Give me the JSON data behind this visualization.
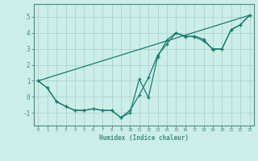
{
  "title": "",
  "xlabel": "Humidex (Indice chaleur)",
  "bg_color": "#cceee8",
  "grid_color": "#aad4cc",
  "line_color": "#1a7a6e",
  "axis_color": "#4a8a80",
  "xlim": [
    -0.5,
    23.5
  ],
  "ylim": [
    -1.8,
    5.8
  ],
  "xticks": [
    0,
    1,
    2,
    3,
    4,
    5,
    6,
    7,
    8,
    9,
    10,
    11,
    12,
    13,
    14,
    15,
    16,
    17,
    18,
    19,
    20,
    21,
    22,
    23
  ],
  "yticks": [
    -1,
    0,
    1,
    2,
    3,
    4,
    5
  ],
  "line1_x": [
    0,
    1,
    2,
    3,
    4,
    5,
    6,
    7,
    8,
    9,
    10,
    11,
    12,
    13,
    14,
    15,
    16,
    17,
    18,
    19,
    20,
    21,
    22,
    23
  ],
  "line1_y": [
    1.0,
    0.55,
    -0.3,
    -0.6,
    -0.85,
    -0.85,
    -0.75,
    -0.85,
    -0.85,
    -1.3,
    -1.0,
    1.1,
    -0.05,
    2.5,
    3.55,
    4.0,
    3.8,
    3.75,
    3.5,
    3.0,
    3.0,
    4.2,
    4.5,
    5.1
  ],
  "line2_x": [
    0,
    1,
    2,
    3,
    4,
    5,
    6,
    7,
    8,
    9,
    10,
    11,
    12,
    13,
    14,
    15,
    16,
    17,
    18,
    19,
    20,
    21,
    22,
    23
  ],
  "line2_y": [
    1.0,
    0.55,
    -0.3,
    -0.6,
    -0.85,
    -0.85,
    -0.75,
    -0.85,
    -0.85,
    -1.3,
    -0.85,
    0.1,
    1.2,
    2.6,
    3.3,
    4.0,
    3.75,
    3.8,
    3.6,
    2.95,
    3.0,
    4.2,
    4.5,
    5.1
  ],
  "line3_x": [
    0,
    23
  ],
  "line3_y": [
    1.0,
    5.1
  ]
}
